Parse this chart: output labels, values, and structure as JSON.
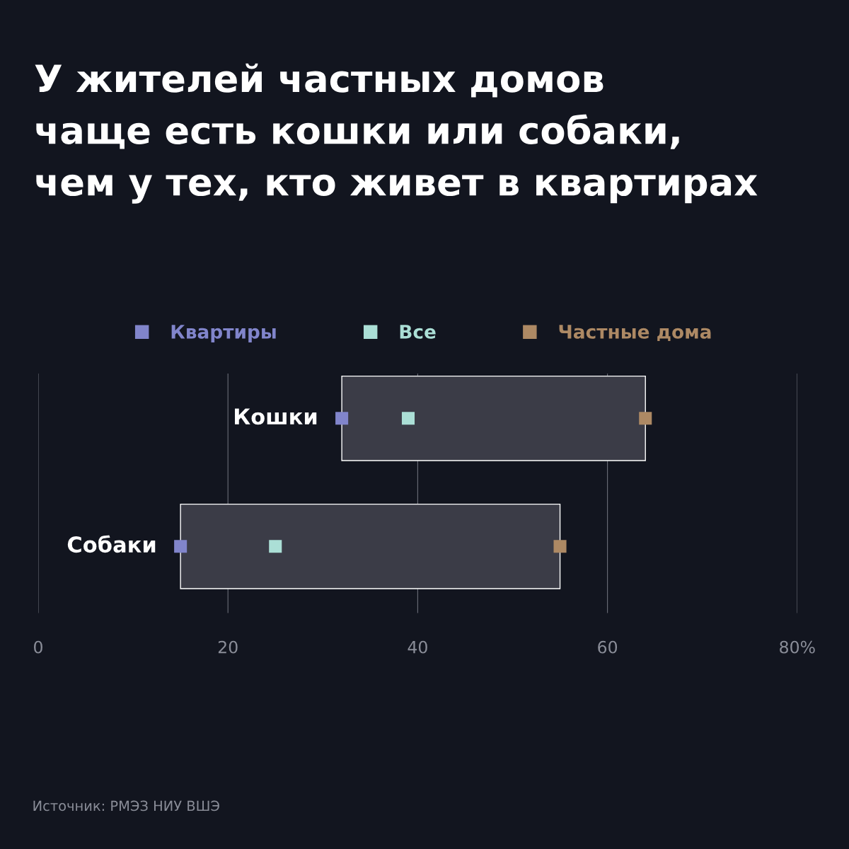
{
  "chart_data": {
    "type": "scatter",
    "orientation": "horizontal",
    "title": "У жителей частных домов\nчаще есть кошки или собаки,\nчем у тех, кто живет в квартирах",
    "categories": [
      "Кошки",
      "Собаки"
    ],
    "series": [
      {
        "type": "bar",
        "color": "#3b3c47",
        "base": [
          32,
          15
        ],
        "values": [
          32,
          40
        ]
      },
      {
        "name": "Квартиры",
        "color": "#8185cb",
        "values": [
          32,
          15
        ]
      },
      {
        "name": "Все",
        "color": "#abdfd6",
        "values": [
          39,
          25
        ]
      },
      {
        "name": "Частные дома",
        "color": "#ad8964",
        "values": [
          64,
          55
        ]
      }
    ],
    "xlim": [
      0,
      80
    ],
    "xticks": [
      0,
      20,
      40,
      60,
      {
        "value": 80,
        "label": "80%"
      }
    ],
    "grid": "x",
    "tick_labels": "x",
    "marker": "square",
    "legend": "top",
    "annotations": [
      "Источник: РМЭЗ НИУ ВШЭ"
    ]
  }
}
